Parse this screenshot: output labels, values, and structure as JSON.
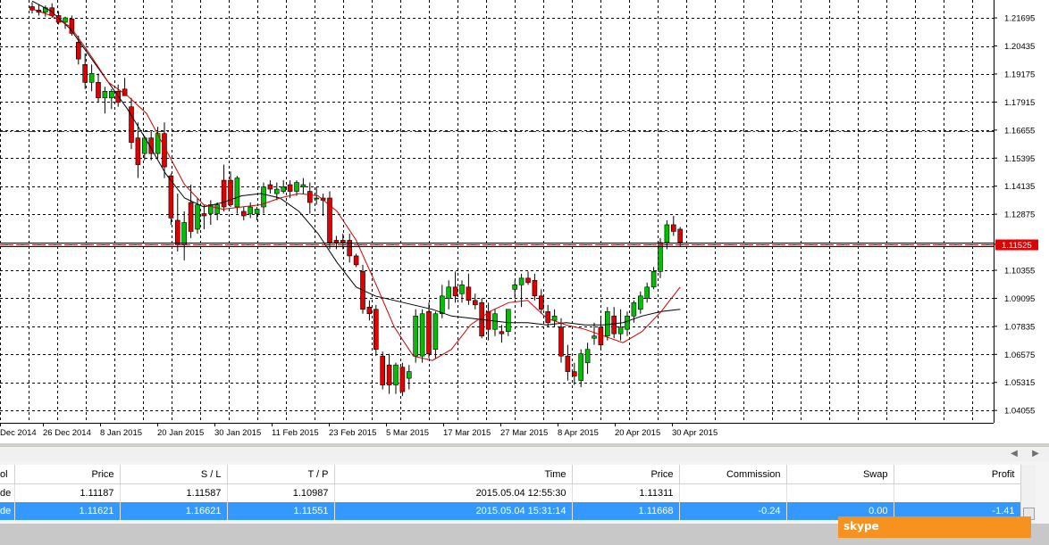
{
  "chart": {
    "price_levels": [
      "1.21695",
      "1.20435",
      "1.19175",
      "1.17915",
      "1.16655",
      "1.15395",
      "1.14135",
      "1.12875",
      "1.11525",
      "1.10355",
      "1.09095",
      "1.07835",
      "1.06575",
      "1.05315",
      "1.04055"
    ],
    "current_price": "1.11525",
    "date_labels": [
      "Dec 2014",
      "26 Dec 2014",
      "8 Jan 2015",
      "20 Jan 2015",
      "30 Jan 2015",
      "11 Feb 2015",
      "23 Feb 2015",
      "5 Mar 2015",
      "17 Mar 2015",
      "27 Mar 2015",
      "8 Apr 2015",
      "20 Apr 2015",
      "30 Apr 2015"
    ],
    "colors": {
      "bull": "#00c000",
      "bear": "#e00000",
      "ma_fast": "#cc0000",
      "ma_slow": "#000000",
      "grid": "#000000",
      "price_tag": "#e00000"
    }
  },
  "chart_data": {
    "type": "candlestick",
    "title": "",
    "ylim": [
      1.035,
      1.225
    ],
    "x": [
      "Dec 2014",
      "26 Dec 2014",
      "8 Jan 2015",
      "20 Jan 2015",
      "30 Jan 2015",
      "11 Feb 2015",
      "23 Feb 2015",
      "5 Mar 2015",
      "17 Mar 2015",
      "27 Mar 2015",
      "8 Apr 2015",
      "20 Apr 2015",
      "30 Apr 2015"
    ],
    "candles": [
      [
        1.222,
        1.224,
        1.219,
        1.2205
      ],
      [
        1.2205,
        1.223,
        1.218,
        1.2195
      ],
      [
        1.2195,
        1.2225,
        1.2175,
        1.2215
      ],
      [
        1.2215,
        1.2235,
        1.217,
        1.218
      ],
      [
        1.218,
        1.22,
        1.214,
        1.215
      ],
      [
        1.215,
        1.2175,
        1.212,
        1.217
      ],
      [
        1.2165,
        1.218,
        1.209,
        1.21
      ],
      [
        1.206,
        1.209,
        1.196,
        1.1985
      ],
      [
        1.196,
        1.201,
        1.185,
        1.188
      ],
      [
        1.188,
        1.196,
        1.184,
        1.192
      ],
      [
        1.188,
        1.192,
        1.179,
        1.181
      ],
      [
        1.181,
        1.186,
        1.174,
        1.184
      ],
      [
        1.181,
        1.185,
        1.176,
        1.184
      ],
      [
        1.184,
        1.187,
        1.177,
        1.179
      ],
      [
        1.185,
        1.19,
        1.182,
        1.182
      ],
      [
        1.177,
        1.181,
        1.158,
        1.161
      ],
      [
        1.163,
        1.17,
        1.145,
        1.151
      ],
      [
        1.156,
        1.164,
        1.153,
        1.163
      ],
      [
        1.163,
        1.166,
        1.153,
        1.156
      ],
      [
        1.156,
        1.168,
        1.154,
        1.165
      ],
      [
        1.165,
        1.17,
        1.145,
        1.15
      ],
      [
        1.146,
        1.147,
        1.124,
        1.127
      ],
      [
        1.126,
        1.138,
        1.112,
        1.115
      ],
      [
        1.115,
        1.13,
        1.108,
        1.125
      ],
      [
        1.134,
        1.142,
        1.118,
        1.121
      ],
      [
        1.122,
        1.136,
        1.12,
        1.133
      ],
      [
        1.129,
        1.133,
        1.122,
        1.128
      ],
      [
        1.129,
        1.135,
        1.124,
        1.133
      ],
      [
        1.129,
        1.134,
        1.126,
        1.133
      ],
      [
        1.144,
        1.151,
        1.13,
        1.132
      ],
      [
        1.144,
        1.148,
        1.132,
        1.133
      ],
      [
        1.132,
        1.146,
        1.129,
        1.145
      ],
      [
        1.13,
        1.132,
        1.126,
        1.128
      ],
      [
        1.129,
        1.134,
        1.127,
        1.132
      ],
      [
        1.129,
        1.132,
        1.126,
        1.131
      ],
      [
        1.132,
        1.143,
        1.129,
        1.141
      ],
      [
        1.142,
        1.144,
        1.138,
        1.14
      ],
      [
        1.138,
        1.143,
        1.135,
        1.14
      ],
      [
        1.139,
        1.144,
        1.138,
        1.141
      ],
      [
        1.142,
        1.144,
        1.136,
        1.139
      ],
      [
        1.139,
        1.144,
        1.137,
        1.143
      ],
      [
        1.141,
        1.145,
        1.138,
        1.142
      ],
      [
        1.139,
        1.143,
        1.129,
        1.134
      ],
      [
        1.136,
        1.141,
        1.133,
        1.136
      ],
      [
        1.136,
        1.138,
        1.128,
        1.135
      ],
      [
        1.136,
        1.139,
        1.113,
        1.116
      ],
      [
        1.117,
        1.119,
        1.113,
        1.116
      ],
      [
        1.117,
        1.12,
        1.113,
        1.116
      ],
      [
        1.117,
        1.12,
        1.107,
        1.11
      ],
      [
        1.11,
        1.111,
        1.105,
        1.106
      ],
      [
        1.103,
        1.106,
        1.084,
        1.086
      ],
      [
        1.087,
        1.09,
        1.081,
        1.084
      ],
      [
        1.086,
        1.088,
        1.065,
        1.068
      ],
      [
        1.065,
        1.067,
        1.05,
        1.052
      ],
      [
        1.061,
        1.066,
        1.048,
        1.052
      ],
      [
        1.052,
        1.062,
        1.048,
        1.061
      ],
      [
        1.06,
        1.062,
        1.047,
        1.049
      ],
      [
        1.055,
        1.061,
        1.05,
        1.058
      ],
      [
        1.065,
        1.086,
        1.062,
        1.083
      ],
      [
        1.065,
        1.086,
        1.062,
        1.084
      ],
      [
        1.085,
        1.089,
        1.064,
        1.066
      ],
      [
        1.068,
        1.085,
        1.064,
        1.084
      ],
      [
        1.084,
        1.097,
        1.082,
        1.092
      ],
      [
        1.091,
        1.099,
        1.086,
        1.096
      ],
      [
        1.096,
        1.103,
        1.089,
        1.092
      ],
      [
        1.093,
        1.099,
        1.089,
        1.097
      ],
      [
        1.096,
        1.102,
        1.088,
        1.09
      ],
      [
        1.09,
        1.093,
        1.086,
        1.088
      ],
      [
        1.089,
        1.091,
        1.073,
        1.074
      ],
      [
        1.085,
        1.089,
        1.072,
        1.077
      ],
      [
        1.077,
        1.086,
        1.074,
        1.084
      ],
      [
        1.076,
        1.079,
        1.071,
        1.075
      ],
      [
        1.076,
        1.086,
        1.074,
        1.086
      ],
      [
        1.095,
        1.099,
        1.091,
        1.097
      ],
      [
        1.097,
        1.102,
        1.087,
        1.1
      ],
      [
        1.1,
        1.103,
        1.097,
        1.098
      ],
      [
        1.099,
        1.102,
        1.09,
        1.092
      ],
      [
        1.092,
        1.095,
        1.084,
        1.086
      ],
      [
        1.085,
        1.088,
        1.078,
        1.08
      ],
      [
        1.081,
        1.086,
        1.078,
        1.083
      ],
      [
        1.078,
        1.082,
        1.062,
        1.065
      ],
      [
        1.065,
        1.07,
        1.054,
        1.058
      ],
      [
        1.058,
        1.062,
        1.052,
        1.056
      ],
      [
        1.054,
        1.068,
        1.051,
        1.066
      ],
      [
        1.062,
        1.071,
        1.057,
        1.068
      ],
      [
        1.073,
        1.08,
        1.07,
        1.074
      ],
      [
        1.078,
        1.083,
        1.068,
        1.07
      ],
      [
        1.074,
        1.087,
        1.072,
        1.085
      ],
      [
        1.083,
        1.087,
        1.073,
        1.075
      ],
      [
        1.075,
        1.086,
        1.072,
        1.078
      ],
      [
        1.077,
        1.085,
        1.074,
        1.083
      ],
      [
        1.083,
        1.09,
        1.08,
        1.089
      ],
      [
        1.086,
        1.094,
        1.084,
        1.092
      ],
      [
        1.091,
        1.098,
        1.089,
        1.096
      ],
      [
        1.096,
        1.105,
        1.095,
        1.103
      ],
      [
        1.103,
        1.118,
        1.1,
        1.116
      ],
      [
        1.116,
        1.126,
        1.113,
        1.124
      ],
      [
        1.124,
        1.128,
        1.119,
        1.121
      ],
      [
        1.122,
        1.123,
        1.114,
        1.116
      ]
    ],
    "ma_fast": [
      [
        1.221,
        0
      ],
      [
        1.218,
        1
      ],
      [
        1.213,
        2
      ],
      [
        1.201,
        3
      ],
      [
        1.188,
        4
      ],
      [
        1.182,
        5
      ],
      [
        1.174,
        6
      ],
      [
        1.158,
        7
      ],
      [
        1.142,
        8
      ],
      [
        1.133,
        9
      ],
      [
        1.131,
        10
      ],
      [
        1.132,
        11
      ],
      [
        1.133,
        12
      ],
      [
        1.136,
        13
      ],
      [
        1.138,
        14
      ],
      [
        1.137,
        15
      ],
      [
        1.13,
        16
      ],
      [
        1.117,
        17
      ],
      [
        1.098,
        18
      ],
      [
        1.078,
        19
      ],
      [
        1.065,
        20
      ],
      [
        1.063,
        21
      ],
      [
        1.068,
        22
      ],
      [
        1.079,
        23
      ],
      [
        1.085,
        24
      ],
      [
        1.089,
        25
      ],
      [
        1.09,
        26
      ],
      [
        1.082,
        27
      ],
      [
        1.079,
        28
      ],
      [
        1.077,
        29
      ],
      [
        1.074,
        30
      ],
      [
        1.071,
        31
      ],
      [
        1.076,
        32
      ],
      [
        1.085,
        33
      ],
      [
        1.096,
        34
      ]
    ],
    "ma_slow": [
      [
        1.2245,
        0
      ],
      [
        1.22,
        2
      ],
      [
        1.212,
        4
      ],
      [
        1.2,
        6
      ],
      [
        1.188,
        8
      ],
      [
        1.176,
        10
      ],
      [
        1.162,
        12
      ],
      [
        1.147,
        14
      ],
      [
        1.136,
        16
      ],
      [
        1.132,
        18
      ],
      [
        1.134,
        20
      ],
      [
        1.137,
        22
      ],
      [
        1.138,
        24
      ],
      [
        1.136,
        26
      ],
      [
        1.13,
        28
      ],
      [
        1.12,
        30
      ],
      [
        1.107,
        32
      ],
      [
        1.096,
        34
      ],
      [
        1.092,
        36
      ],
      [
        1.09,
        38
      ],
      [
        1.088,
        40
      ],
      [
        1.086,
        42
      ],
      [
        1.083,
        44
      ],
      [
        1.082,
        46
      ],
      [
        1.081,
        48
      ],
      [
        1.08,
        50
      ],
      [
        1.08,
        52
      ],
      [
        1.079,
        54
      ],
      [
        1.08,
        56
      ],
      [
        1.079,
        58
      ],
      [
        1.079,
        60
      ],
      [
        1.08,
        62
      ],
      [
        1.083,
        64
      ],
      [
        1.085,
        66
      ],
      [
        1.086,
        68
      ]
    ],
    "levels": {
      "sl_line": 1.16621,
      "bid_line": 1.11525,
      "order_line": 1.11311
    }
  },
  "terminal": {
    "headers": {
      "symbol": "ol",
      "price": "Price",
      "sl": "S / L",
      "tp": "T / P",
      "time": "Time",
      "price_now": "Price",
      "commission": "Commission",
      "swap": "Swap",
      "profit": "Profit"
    },
    "rows": [
      {
        "symbol": "de",
        "price": "1.11187",
        "sl": "1.11587",
        "tp": "1.10987",
        "time": "2015.05.04 12:55:30",
        "price_now": "1.11311",
        "commission": "",
        "swap": "",
        "profit": ""
      },
      {
        "symbol": "de",
        "price": "1.11621",
        "sl": "1.16621",
        "tp": "1.11551",
        "time": "2015.05.04 15:31:14",
        "price_now": "1.11668",
        "commission": "-0.24",
        "swap": "0.00",
        "profit": "-1.41"
      }
    ]
  },
  "skype": {
    "label": "skype",
    "color": "#f7921e"
  }
}
